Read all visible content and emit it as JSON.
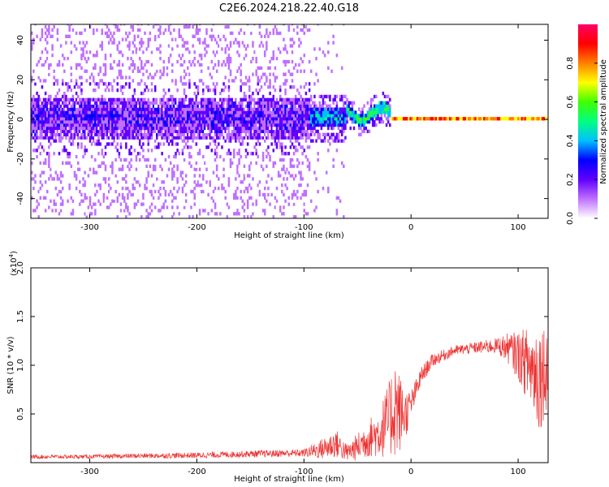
{
  "figure_title": "C2E6.2024.218.22.40.G18",
  "colors": {
    "snr_line": "#ee3333",
    "spec_peak": "#ff0000",
    "background": "#ffffff"
  },
  "chart_data": [
    {
      "id": "spectrogram",
      "type": "heatmap",
      "xlabel": "Height of straight line (km)",
      "ylabel": "Frequency (Hz)",
      "xlim": [
        -355,
        128
      ],
      "ylim": [
        -50,
        48
      ],
      "xticks": [
        -300,
        -200,
        -100,
        0,
        100
      ],
      "yticks": [
        -40,
        -20,
        0,
        20,
        40
      ],
      "colorbar": {
        "label": "Normalized spectral amplitude",
        "range": [
          0,
          1
        ],
        "ticks": [
          "0.0",
          "0.2",
          "0.4",
          "0.6",
          "0.8"
        ],
        "ramp": [
          "#ffffff",
          "#c070ff",
          "#6000ff",
          "#0000ff",
          "#00c0ff",
          "#00ff80",
          "#40ff00",
          "#ffff00",
          "#ff8000",
          "#ff0000",
          "#ff0066"
        ]
      },
      "regions": [
        {
          "x": [
            -355,
            -95
          ],
          "center_hz": 0,
          "core_halfwidth_hz": 10,
          "noise": "broad",
          "amplitude": 0.2
        },
        {
          "x": [
            -95,
            -62
          ],
          "center_hz": 0,
          "core_halfwidth_hz": 5,
          "noise": "moderate",
          "amplitude": 0.4
        },
        {
          "x": [
            -62,
            -20
          ],
          "center_hz": 2,
          "core_halfwidth_hz": 3,
          "noise": "weak",
          "amplitude": 0.55
        },
        {
          "x": [
            -20,
            128
          ],
          "center_hz": 0,
          "core_halfwidth_hz": 1,
          "noise": "none",
          "amplitude": 0.95
        }
      ]
    },
    {
      "id": "snr",
      "type": "line",
      "xlabel": "Height of straight line (km)",
      "ylabel": "SNR (10 * v/v)",
      "y_multiplier": "(x10",
      "y_multiplier_exp": "4",
      "xlim": [
        -355,
        128
      ],
      "ylim": [
        0,
        20000
      ],
      "xticks": [
        -300,
        -200,
        -100,
        0,
        100
      ],
      "yticks": [
        5000,
        10000,
        15000,
        20000
      ],
      "ytick_labels": [
        "0.5",
        "1.0",
        "1.5",
        "2.0"
      ],
      "series": [
        {
          "x": [
            -355,
            -300,
            -250,
            -200,
            -150,
            -100,
            -80,
            -70,
            -60,
            -50,
            -40,
            -30,
            -20,
            -15,
            -10,
            -5,
            0,
            10,
            20,
            40,
            60,
            80,
            90,
            100,
            110,
            120,
            128
          ],
          "y": [
            600,
            620,
            700,
            750,
            900,
            1000,
            1500,
            2000,
            1000,
            1600,
            2500,
            3000,
            4500,
            6000,
            5000,
            5000,
            6000,
            9000,
            10500,
            11500,
            11800,
            12000,
            11800,
            11000,
            10000,
            9000,
            10000
          ],
          "noise": [
            200,
            200,
            250,
            300,
            350,
            400,
            1200,
            1500,
            900,
            1400,
            2000,
            2500,
            4000,
            5500,
            4000,
            2500,
            1500,
            900,
            700,
            500,
            600,
            800,
            1500,
            2500,
            4000,
            6000,
            4000
          ]
        }
      ]
    }
  ]
}
